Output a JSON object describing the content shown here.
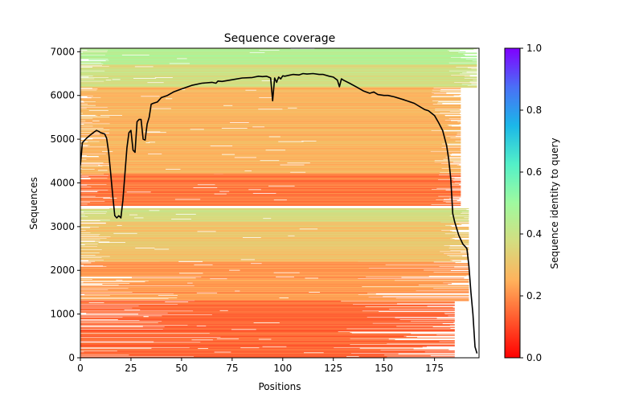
{
  "chart_data": {
    "type": "heatmap",
    "title": "Sequence coverage",
    "xlabel": "Positions",
    "ylabel": "Sequences",
    "xlim": [
      0,
      197
    ],
    "ylim": [
      0,
      7080
    ],
    "x_ticks": [
      0,
      25,
      50,
      75,
      100,
      125,
      150,
      175
    ],
    "x_tick_labels": [
      "0",
      "25",
      "50",
      "75",
      "100",
      "125",
      "150",
      "175"
    ],
    "y_ticks": [
      0,
      1000,
      2000,
      3000,
      4000,
      5000,
      6000,
      7000
    ],
    "y_tick_labels": [
      "0",
      "1000",
      "2000",
      "3000",
      "4000",
      "5000",
      "6000",
      "7000"
    ],
    "grid": false,
    "colorbar": {
      "label": "Sequence identity to query",
      "colormap": "rainbow_r",
      "range": [
        0.0,
        1.0
      ],
      "ticks": [
        0.0,
        0.2,
        0.4,
        0.6,
        0.8,
        1.0
      ],
      "tick_labels": [
        "0.0",
        "0.2",
        "0.4",
        "0.6",
        "0.8",
        "1.0"
      ],
      "stops": [
        "#ff0000",
        "#ff5a2e",
        "#ffb25c",
        "#d4dd80",
        "#9ffa9f",
        "#53f0c8",
        "#1bb7e8",
        "#4a6ff6",
        "#8000ff"
      ]
    },
    "alignment_bands": [
      {
        "seq_range": [
          6700,
          7080
        ],
        "identity": 0.45,
        "coverage_positions": [
          0,
          196
        ]
      },
      {
        "seq_range": [
          6180,
          6700
        ],
        "identity": 0.38,
        "coverage_positions": [
          0,
          196
        ]
      },
      {
        "seq_range": [
          4200,
          6180
        ],
        "identity": 0.26,
        "coverage_positions": [
          0,
          188
        ]
      },
      {
        "seq_range": [
          3480,
          4200
        ],
        "identity": 0.17,
        "coverage_positions": [
          0,
          188
        ]
      },
      {
        "seq_range": [
          3100,
          3420
        ],
        "identity": 0.38,
        "coverage_positions": [
          0,
          192
        ]
      },
      {
        "seq_range": [
          2200,
          3100
        ],
        "identity": 0.3,
        "coverage_positions": [
          0,
          192
        ]
      },
      {
        "seq_range": [
          1300,
          2200
        ],
        "identity": 0.22,
        "coverage_positions": [
          0,
          192
        ]
      },
      {
        "seq_range": [
          0,
          1300
        ],
        "identity": 0.14,
        "coverage_positions": [
          0,
          185
        ]
      }
    ],
    "series": [
      {
        "name": "coverage",
        "color": "#000000",
        "x": [
          0,
          1,
          3,
          5,
          7,
          8,
          9,
          10,
          12,
          13,
          14,
          15,
          16,
          17,
          18,
          19,
          20,
          21,
          22,
          23,
          24,
          25,
          26,
          27,
          28,
          29,
          30,
          31,
          32,
          33,
          34,
          35,
          36,
          38,
          40,
          43,
          46,
          50,
          55,
          60,
          65,
          67,
          68,
          70,
          75,
          80,
          85,
          88,
          90,
          92,
          93,
          94,
          95,
          96,
          97,
          98,
          99,
          100,
          101,
          103,
          105,
          108,
          110,
          112,
          115,
          118,
          120,
          123,
          125,
          127,
          128,
          129,
          130,
          133,
          137,
          140,
          143,
          145,
          147,
          150,
          152,
          155,
          160,
          165,
          170,
          172,
          175,
          177,
          179,
          181,
          182,
          183,
          184,
          185,
          187,
          189,
          191,
          192,
          193,
          194,
          195,
          196
        ],
        "y": [
          4400,
          4920,
          5020,
          5100,
          5170,
          5200,
          5180,
          5150,
          5120,
          5020,
          4700,
          4200,
          3700,
          3250,
          3200,
          3250,
          3200,
          3600,
          4200,
          4800,
          5150,
          5200,
          4750,
          4700,
          5400,
          5450,
          5450,
          5000,
          4980,
          5350,
          5500,
          5800,
          5820,
          5850,
          5950,
          6000,
          6080,
          6150,
          6230,
          6280,
          6300,
          6280,
          6330,
          6320,
          6360,
          6400,
          6410,
          6440,
          6430,
          6440,
          6420,
          6400,
          5880,
          6400,
          6300,
          6420,
          6380,
          6450,
          6440,
          6460,
          6480,
          6470,
          6500,
          6490,
          6500,
          6480,
          6480,
          6440,
          6420,
          6350,
          6200,
          6380,
          6350,
          6280,
          6180,
          6100,
          6050,
          6080,
          6020,
          6000,
          6000,
          5970,
          5900,
          5820,
          5680,
          5650,
          5540,
          5380,
          5200,
          4850,
          4550,
          4100,
          3300,
          3100,
          2800,
          2600,
          2500,
          2100,
          1500,
          1000,
          250,
          100
        ]
      }
    ]
  }
}
